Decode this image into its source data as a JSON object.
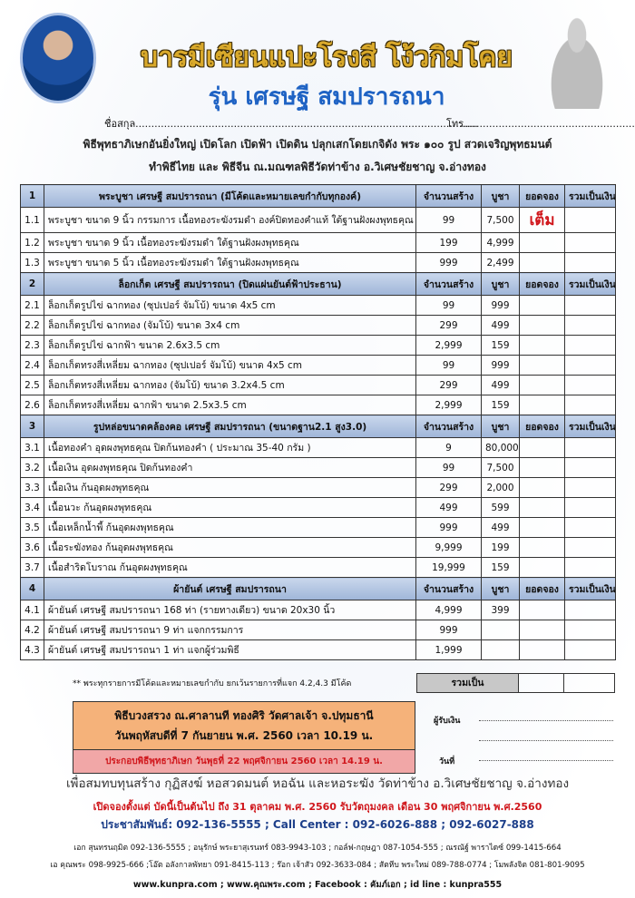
{
  "header": {
    "title": "บารมีเซียนแปะโรงสี โง้วกิมโคย",
    "subtitle": "รุ่น เศรษฐี สมปรารถนา",
    "name_label": "ชื่อสกุล............................................................................................................",
    "tel_label": "โทร.........................................................",
    "line1": "พิธีพุทธาภิเษกอันยิ่งใหญ่ เปิดโลก เปิดฟ้า เปิดดิน ปลุกเสกโดยเกจิดัง พระ ๑๐๐ รูป สวดเจริญพุทธมนต์",
    "line2": "ทำพิธีไทย และ พิธีจีน ณ.มณฑลพิธีวัดท่าข้าง อ.วิเศษชัยชาญ จ.อ่างทอง"
  },
  "columns": {
    "qty": "จำนวนสร้าง",
    "price": "บูชา",
    "booked": "ยอดจอง",
    "total": "รวมเป็นเงิน"
  },
  "sections": [
    {
      "no": "1",
      "title": "พระบูชา เศรษฐี สมปรารถนา (มีโค้ดและหมายเลขกำกับทุกองค์)",
      "items": [
        {
          "no": "1.1",
          "desc": "พระบูชา ขนาด 9 นิ้ว กรรมการ เนื้อทองระฆังรมดำ องค์ปิดทองคำแท้ ใต้ฐานฝังผงพุทธคุณ",
          "qty": "99",
          "price": "7,500",
          "booked": "เต็ม"
        },
        {
          "no": "1.2",
          "desc": "พระบูชา ขนาด 9 นิ้ว  เนื้อทองระฆังรมดำ ใต้ฐานฝังผงพุทธคุณ",
          "qty": "199",
          "price": "4,999",
          "booked": ""
        },
        {
          "no": "1.3",
          "desc": "พระบูชา ขนาด 5 นิ้ว  เนื้อทองระฆังรมดำ ใต้ฐานฝังผงพุทธคุณ",
          "qty": "999",
          "price": "2,499",
          "booked": ""
        }
      ]
    },
    {
      "no": "2",
      "title": "ล็อกเก็ต  เศรษฐี สมปรารถนา (ปิดแผ่นยันต์ฟ้าประธาน)",
      "items": [
        {
          "no": "2.1",
          "desc": "ล็อกเก็ตรูปไข่ ฉากทอง (ซุปเปอร์ จัมโบ้) ขนาด 4x5 cm",
          "qty": "99",
          "price": "999",
          "booked": ""
        },
        {
          "no": "2.2",
          "desc": "ล็อกเก็ตรูปไข่ ฉากทอง (จัมโบ้) ขนาด 3x4 cm",
          "qty": "299",
          "price": "499",
          "booked": ""
        },
        {
          "no": "2.3",
          "desc": "ล็อกเก็ตรูปไข่ ฉากฟ้า ขนาด 2.6x3.5 cm",
          "qty": "2,999",
          "price": "159",
          "booked": ""
        },
        {
          "no": "2.4",
          "desc": "ล็อกเก็ตทรงสี่เหลี่ยม ฉากทอง (ซุปเปอร์ จัมโบ้) ขนาด 4x5 cm",
          "qty": "99",
          "price": "999",
          "booked": ""
        },
        {
          "no": "2.5",
          "desc": "ล็อกเก็ตทรงสี่เหลี่ยม ฉากทอง (จัมโบ้) ขนาด 3.2x4.5 cm",
          "qty": "299",
          "price": "499",
          "booked": ""
        },
        {
          "no": "2.6",
          "desc": "ล็อกเก็ตทรงสี่เหลี่ยม ฉากฟ้า ขนาด 2.5x3.5 cm",
          "qty": "2,999",
          "price": "159",
          "booked": ""
        }
      ]
    },
    {
      "no": "3",
      "title": "รูปหล่อขนาดคล้องคอ เศรษฐี สมปรารถนา  (ขนาดฐาน2.1 สูง3.0)",
      "items": [
        {
          "no": "3.1",
          "desc": "เนื้อทองคำ อุดผงพุทธคุณ ปิดก้นทองคำ ( ประมาณ 35-40 กรัม )",
          "qty": "9",
          "price": "80,000",
          "booked": ""
        },
        {
          "no": "3.2",
          "desc": "เนื้อเงิน อุดผงพุทธคุณ ปิดก้นทองคำ",
          "qty": "99",
          "price": "7,500",
          "booked": ""
        },
        {
          "no": "3.3",
          "desc": "เนื้อเงิน ก้นอุดผงพุทธคุณ",
          "qty": "299",
          "price": "2,000",
          "booked": ""
        },
        {
          "no": "3.4",
          "desc": "เนื้อนวะ ก้นอุดผงพุทธคุณ",
          "qty": "499",
          "price": "599",
          "booked": ""
        },
        {
          "no": "3.5",
          "desc": "เนื้อเหล็กน้ำพี้ ก้นอุดผงพุทธคุณ",
          "qty": "999",
          "price": "499",
          "booked": ""
        },
        {
          "no": "3.6",
          "desc": "เนื้อระฆังทอง ก้นอุดผงพุทธคุณ",
          "qty": "9,999",
          "price": "199",
          "booked": ""
        },
        {
          "no": "3.7",
          "desc": "เนื้อสำริดโบราณ ก้นอุดผงพุทธคุณ",
          "qty": "19,999",
          "price": "159",
          "booked": ""
        }
      ]
    },
    {
      "no": "4",
      "title": "ผ้ายันต์ เศรษฐี สมปรารถนา",
      "items": [
        {
          "no": "4.1",
          "desc": "ผ้ายันต์ เศรษฐี สมปรารถนา 168 ท่า (รายทางเดียว) ขนาด 20x30 นิ้ว",
          "qty": "4,999",
          "price": "399",
          "booked": ""
        },
        {
          "no": "4.2",
          "desc": "ผ้ายันต์ เศรษฐี สมปรารถนา 9 ท่า แจกกรรมการ",
          "qty": "999",
          "price": "",
          "booked": ""
        },
        {
          "no": "4.3",
          "desc": "ผ้ายันต์ เศรษฐี สมปรารถนา 1 ท่า แจกผู้ร่วมพิธี",
          "qty": "1,999",
          "price": "",
          "booked": ""
        }
      ]
    }
  ],
  "note": "** พระทุกรายการมีโค้ดและหมายเลขกำกับ ยกเว้นรายการที่แจก 4.2,4.3 มีโค้ด",
  "total_label": "รวมเป็น",
  "ceremony": {
    "line1": "พิธีบวงสรวง ณ.ศาลานที ทองศิริ วัดศาลเจ้า จ.ปทุมธานี",
    "line2": "วันพฤหัสบดีที่ 7 กันยายน พ.ศ. 2560 เวลา 10.19 น.",
    "line3": "ประกอบพิธีพุทธาภิเษก วันพุธที่ 22 พฤศจิกายน 2560 เวลา 14.19 น."
  },
  "signature": {
    "receiver": "ผู้รับเงิน",
    "date": "วันที่"
  },
  "footer": {
    "purpose": "เพื่อสมทบทุนสร้าง กุฏิสงฆ์ หอสวดมนต์ หอฉัน และหอระฆัง วัดท่าข้าง อ.วิเศษชัยชาญ จ.อ่างทอง",
    "booking": "เปิดจองตั้งแต่ บัดนี้เป็นต้นไป ถึง 31 ตุลาคม พ.ศ. 2560  รับวัตถุมงคล เดือน 30 พฤศจิกายน  พ.ศ.2560",
    "pr": "ประชาสัมพันธ์:   092-136-5555 ; Call Center : 092-6026-888 ; 092-6027-888",
    "contacts1": "เอก สุนทรนฤมิต  092-136-5555 ; อนุรักษ์ พระยาสุเรนทร์ 083-9943-103 ; กอล์ฟ-กฤษฎา 087-1054-555 ; ณรณัฐ์ พาราไดซ์ 099-1415-664",
    "contacts2": "เอ คุณพระ 098-9925-666 ;โอ๊ต อลังกาลพัทยา 091-8415-113 ; ร๊อก เจ้าสัว 092-3633-084 ;  สัตหีบ พระใหม่ 089-788-0774 ; โมพลังจิต 081-801-9095",
    "web": "www.kunpra.com ; www.คุณพระ.com ; Facebook : คัมภ์เอก ; id line : kunpra555"
  },
  "colors": {
    "title_gold": "#d9a92b",
    "subtitle_blue": "#1f63c4",
    "header_row": "#b3c6e4",
    "ceremony_orange": "#f5b27a",
    "ceremony_pink": "#f1a7a7",
    "red": "#d0161b"
  }
}
